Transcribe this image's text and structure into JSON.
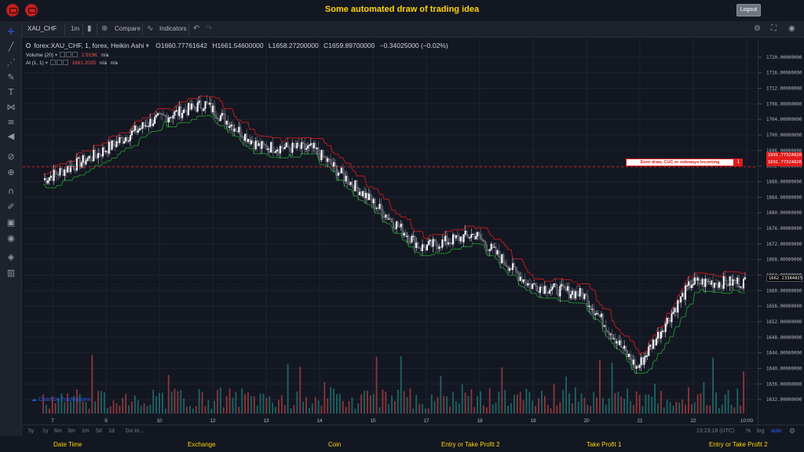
{
  "page": {
    "title": "Some automated draw of trading idea",
    "logout_label": "Logout"
  },
  "toolbar": {
    "symbol": "XAU_CHF",
    "interval": "1m",
    "compare_label": "Compare",
    "indicators_label": "Indicators"
  },
  "legend": {
    "main_title": "forex:XAU_CHF, 1, forex, Heikin Ashi",
    "open": "O1660.77761642",
    "high": "H1661.54600000",
    "low": "L1658.27200000",
    "close": "C1659.89700000",
    "change": "−0.34025000 (−0.02%)",
    "volume_label": "Volume (20)",
    "volume_value": "2.919K",
    "volume_na": "n/a",
    "al_label": "Al (1, 1)",
    "al_value": "1661.2035",
    "al_na1": "n/a",
    "al_na2": "n/a"
  },
  "price_axis": {
    "ticks": [
      "1720.00000000",
      "1716.00000000",
      "1712.00000000",
      "1708.00000000",
      "1704.00000000",
      "1700.00000000",
      "1696.00000000",
      "1692.00000000",
      "1688.00000000",
      "1684.00000000",
      "1680.00000000",
      "1676.00000000",
      "1672.00000000",
      "1668.00000000",
      "1664.00000000",
      "1660.00000000",
      "1656.00000000",
      "1652.00000000",
      "1648.00000000",
      "1644.00000000",
      "1640.00000000",
      "1636.00000000",
      "1632.00000000"
    ],
    "tag_red_top": "1691.77324826",
    "tag_red_bottom": "1691.77324826",
    "tag_current": "1662.23384825"
  },
  "time_axis": {
    "labels": [
      "7",
      "9",
      "10",
      "12",
      "13",
      "14",
      "15",
      "17",
      "18",
      "19",
      "20",
      "21",
      "22",
      "10:00"
    ]
  },
  "annotation": {
    "text": "Dont draw, CUC or sideways incoming",
    "flag": "1"
  },
  "watermark": "Chart by TradingView",
  "bottombar": {
    "ranges": [
      "5y",
      "1y",
      "6m",
      "3m",
      "1m",
      "5d",
      "1d"
    ],
    "goto": "Go to...",
    "clock": "13:23:18 (UTC)",
    "pct": "%",
    "log": "log",
    "auto": "auto"
  },
  "footer": {
    "labels": [
      "Date Time",
      "Exchange",
      "Coin",
      "Entry or Take Profit 2",
      "Take Profit 1",
      "Entry or Take Profit 2"
    ]
  },
  "colors": {
    "background": "#131722",
    "candle_up": "#ffffff",
    "candle_down": "#787b86",
    "upper_band": "#b71c1c",
    "lower_band": "#1b8a2a",
    "volume_up": "#26a69a",
    "volume_down": "#ef5350",
    "accent": "#ffd400",
    "alert_red": "#e31c1c"
  },
  "chart_data": {
    "type": "line",
    "title": "forex:XAU_CHF, 1, forex, Heikin Ashi",
    "xlabel": "",
    "ylabel": "",
    "ylim": [
      1630,
      1722
    ],
    "x": [
      "7",
      "9",
      "10",
      "12",
      "13",
      "14",
      "15",
      "17",
      "18",
      "19",
      "20",
      "21",
      "22",
      "10:00"
    ],
    "series": [
      {
        "values": [
          1688.5,
          1695.0,
          1703.5,
          1708.0,
          1697.0,
          1696.5,
          1684.0,
          1671.0,
          1674.5,
          1661.5,
          1659.0,
          1640.0,
          1662.0,
          1662.2
        ]
      }
    ],
    "levels": {
      "alert_level": 1691.77324826,
      "current_price": 1662.23384825
    }
  }
}
